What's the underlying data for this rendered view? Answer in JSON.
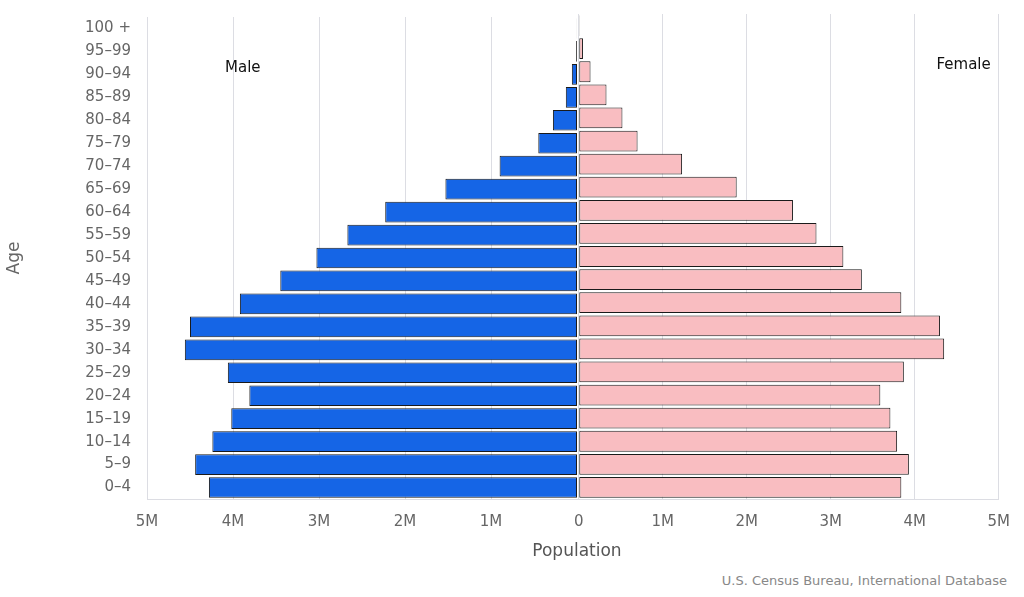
{
  "chart_data": [
    {
      "type": "bar",
      "orientation": "horizontal",
      "ylabel": "Age",
      "categories": [
        "0–4",
        "5–9",
        "10–14",
        "15–19",
        "20–24",
        "25–29",
        "30–34",
        "35–39",
        "40–44",
        "45–49",
        "50–54",
        "55–59",
        "60–64",
        "65–69",
        "70–74",
        "75–79",
        "80–84",
        "85–89",
        "90–94",
        "95–99",
        "100 +"
      ],
      "series": [
        {
          "name": "Male",
          "color": "#1565e6",
          "values": [
            4280000,
            4440000,
            4240000,
            4020000,
            3810000,
            4060000,
            4560000,
            4500000,
            3920000,
            3450000,
            3030000,
            2670000,
            2230000,
            1530000,
            900000,
            450000,
            280000,
            130000,
            60000,
            10000,
            2000
          ]
        }
      ],
      "xlim": [
        0,
        5000000
      ],
      "xticks": [
        {
          "value": 1000000,
          "label": "1M"
        },
        {
          "value": 2000000,
          "label": "2M"
        },
        {
          "value": 3000000,
          "label": "3M"
        },
        {
          "value": 4000000,
          "label": "4M"
        },
        {
          "value": 5000000,
          "label": "5M"
        }
      ],
      "grid": true,
      "legend": "none"
    },
    {
      "type": "bar",
      "orientation": "horizontal",
      "xlabel": "Population",
      "annotations": [
        "U.S. Census Bureau, International Database"
      ],
      "categories": [
        "0–4",
        "5–9",
        "10–14",
        "15–19",
        "20–24",
        "25–29",
        "30–34",
        "35–39",
        "40–44",
        "45–49",
        "50–54",
        "55–59",
        "60–64",
        "65–69",
        "70–74",
        "75–79",
        "80–84",
        "85–89",
        "90–94",
        "95–99",
        "100 +"
      ],
      "series": [
        {
          "name": "Female",
          "color": "#f9bdc1",
          "values": [
            3840000,
            3930000,
            3790000,
            3710000,
            3590000,
            3870000,
            4350000,
            4300000,
            3840000,
            3370000,
            3150000,
            2830000,
            2550000,
            1880000,
            1230000,
            700000,
            520000,
            330000,
            140000,
            50000,
            10000
          ]
        }
      ],
      "xlim": [
        0,
        5000000
      ],
      "xticks": [
        0,
        {
          "value": 1000000,
          "label": "1M"
        },
        {
          "value": 2000000,
          "label": "2M"
        },
        {
          "value": 3000000,
          "label": "3M"
        },
        {
          "value": 4000000,
          "label": "4M"
        },
        {
          "value": 5000000,
          "label": "5M"
        }
      ],
      "grid": true,
      "legend": "none",
      "tick_labels": "x"
    }
  ]
}
